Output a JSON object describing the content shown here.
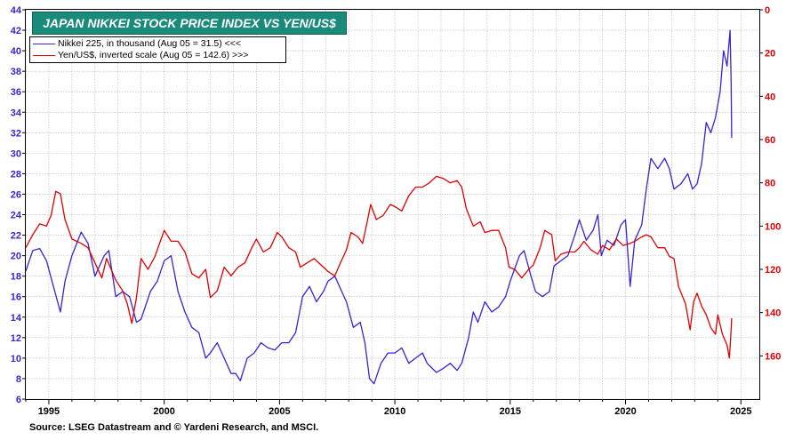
{
  "chart_data": {
    "type": "line",
    "title": "JAPAN NIKKEI STOCK PRICE INDEX VS YEN/US$",
    "source": "Source: LSEG Datastream and © Yardeni Research, and MSCI.",
    "x_ticks": [
      "1995",
      "2000",
      "2005",
      "2010",
      "2015",
      "2020",
      "2025"
    ],
    "xlim": [
      1994.0,
      2025.8
    ],
    "left_axis": {
      "ylim": [
        6,
        44
      ],
      "ticks": [
        6,
        8,
        10,
        12,
        14,
        16,
        18,
        20,
        22,
        24,
        26,
        28,
        30,
        32,
        34,
        36,
        38,
        40,
        42,
        44
      ],
      "color": "#3b22d4"
    },
    "right_axis": {
      "ylim": [
        180,
        0
      ],
      "inverted": true,
      "ticks": [
        0,
        20,
        40,
        60,
        80,
        100,
        120,
        140,
        160
      ],
      "color": "#e00000"
    },
    "grid": true,
    "legend_position": "top-left",
    "series": [
      {
        "name": "Nikkei 225, in thousand (Aug 05 = 31.5) <<<",
        "axis": "left",
        "color": "#3b22d4",
        "points": [
          [
            1994.0,
            18.5
          ],
          [
            1994.3,
            20.5
          ],
          [
            1994.6,
            20.7
          ],
          [
            1994.9,
            19.5
          ],
          [
            1995.2,
            17.0
          ],
          [
            1995.5,
            14.5
          ],
          [
            1995.7,
            17.5
          ],
          [
            1996.0,
            20.0
          ],
          [
            1996.4,
            22.3
          ],
          [
            1996.7,
            21.2
          ],
          [
            1997.0,
            18.0
          ],
          [
            1997.4,
            20.0
          ],
          [
            1997.6,
            20.5
          ],
          [
            1997.9,
            16.0
          ],
          [
            1998.2,
            16.5
          ],
          [
            1998.5,
            16.0
          ],
          [
            1998.8,
            13.5
          ],
          [
            1999.0,
            13.8
          ],
          [
            1999.4,
            16.5
          ],
          [
            1999.7,
            17.5
          ],
          [
            2000.0,
            19.5
          ],
          [
            2000.3,
            20.0
          ],
          [
            2000.6,
            16.5
          ],
          [
            2000.9,
            14.5
          ],
          [
            2001.2,
            13.0
          ],
          [
            2001.5,
            12.5
          ],
          [
            2001.8,
            10.0
          ],
          [
            2002.0,
            10.5
          ],
          [
            2002.3,
            11.5
          ],
          [
            2002.6,
            10.0
          ],
          [
            2002.9,
            8.5
          ],
          [
            2003.1,
            8.5
          ],
          [
            2003.3,
            7.8
          ],
          [
            2003.6,
            10.0
          ],
          [
            2003.9,
            10.5
          ],
          [
            2004.2,
            11.5
          ],
          [
            2004.5,
            11.0
          ],
          [
            2004.8,
            10.8
          ],
          [
            2005.1,
            11.5
          ],
          [
            2005.4,
            11.5
          ],
          [
            2005.7,
            12.5
          ],
          [
            2006.0,
            16.0
          ],
          [
            2006.3,
            17.0
          ],
          [
            2006.6,
            15.5
          ],
          [
            2006.9,
            16.5
          ],
          [
            2007.1,
            17.5
          ],
          [
            2007.4,
            18.0
          ],
          [
            2007.7,
            16.5
          ],
          [
            2007.9,
            15.5
          ],
          [
            2008.2,
            13.0
          ],
          [
            2008.5,
            13.5
          ],
          [
            2008.7,
            11.5
          ],
          [
            2008.9,
            8.0
          ],
          [
            2009.1,
            7.5
          ],
          [
            2009.4,
            9.5
          ],
          [
            2009.7,
            10.5
          ],
          [
            2010.0,
            10.5
          ],
          [
            2010.3,
            11.0
          ],
          [
            2010.6,
            9.5
          ],
          [
            2010.9,
            10.0
          ],
          [
            2011.2,
            10.5
          ],
          [
            2011.4,
            9.5
          ],
          [
            2011.8,
            8.6
          ],
          [
            2012.1,
            9.0
          ],
          [
            2012.4,
            9.5
          ],
          [
            2012.7,
            8.8
          ],
          [
            2012.9,
            9.5
          ],
          [
            2013.2,
            12.0
          ],
          [
            2013.4,
            14.5
          ],
          [
            2013.6,
            13.5
          ],
          [
            2013.9,
            15.5
          ],
          [
            2014.2,
            14.5
          ],
          [
            2014.5,
            15.0
          ],
          [
            2014.8,
            16.0
          ],
          [
            2015.0,
            17.5
          ],
          [
            2015.4,
            20.0
          ],
          [
            2015.6,
            20.5
          ],
          [
            2015.9,
            18.0
          ],
          [
            2016.1,
            16.5
          ],
          [
            2016.4,
            16.0
          ],
          [
            2016.7,
            16.5
          ],
          [
            2016.9,
            19.0
          ],
          [
            2017.2,
            19.5
          ],
          [
            2017.5,
            20.0
          ],
          [
            2017.8,
            22.0
          ],
          [
            2018.0,
            23.5
          ],
          [
            2018.3,
            21.5
          ],
          [
            2018.6,
            22.5
          ],
          [
            2018.8,
            24.0
          ],
          [
            2018.95,
            20.0
          ],
          [
            2019.2,
            21.5
          ],
          [
            2019.5,
            21.0
          ],
          [
            2019.8,
            23.0
          ],
          [
            2020.0,
            23.5
          ],
          [
            2020.2,
            17.0
          ],
          [
            2020.4,
            21.5
          ],
          [
            2020.7,
            23.0
          ],
          [
            2020.9,
            26.5
          ],
          [
            2021.1,
            29.5
          ],
          [
            2021.4,
            28.5
          ],
          [
            2021.7,
            29.5
          ],
          [
            2021.9,
            28.5
          ],
          [
            2022.1,
            26.5
          ],
          [
            2022.4,
            27.0
          ],
          [
            2022.7,
            28.0
          ],
          [
            2022.9,
            26.5
          ],
          [
            2023.1,
            27.0
          ],
          [
            2023.3,
            29.0
          ],
          [
            2023.5,
            33.0
          ],
          [
            2023.7,
            32.0
          ],
          [
            2023.9,
            33.5
          ],
          [
            2024.1,
            36.0
          ],
          [
            2024.25,
            40.0
          ],
          [
            2024.4,
            38.5
          ],
          [
            2024.53,
            42.0
          ],
          [
            2024.58,
            37.0
          ],
          [
            2024.6,
            31.5
          ]
        ]
      },
      {
        "name": "Yen/US$, inverted scale (Aug 05 = 142.6) >>>",
        "axis": "right",
        "color": "#e00000",
        "points": [
          [
            1994.0,
            110
          ],
          [
            1994.3,
            104
          ],
          [
            1994.6,
            99
          ],
          [
            1994.9,
            100
          ],
          [
            1995.1,
            95
          ],
          [
            1995.3,
            84
          ],
          [
            1995.5,
            85
          ],
          [
            1995.7,
            97
          ],
          [
            1996.0,
            106
          ],
          [
            1996.4,
            108
          ],
          [
            1996.7,
            110
          ],
          [
            1997.0,
            117
          ],
          [
            1997.3,
            124
          ],
          [
            1997.5,
            115
          ],
          [
            1997.9,
            125
          ],
          [
            1998.2,
            130
          ],
          [
            1998.4,
            136
          ],
          [
            1998.6,
            145
          ],
          [
            1998.8,
            133
          ],
          [
            1999.0,
            115
          ],
          [
            1999.3,
            120
          ],
          [
            1999.6,
            114
          ],
          [
            2000.0,
            102
          ],
          [
            2000.3,
            107
          ],
          [
            2000.6,
            107
          ],
          [
            2000.9,
            112
          ],
          [
            2001.2,
            122
          ],
          [
            2001.5,
            124
          ],
          [
            2001.8,
            120
          ],
          [
            2002.0,
            133
          ],
          [
            2002.3,
            130
          ],
          [
            2002.6,
            119
          ],
          [
            2002.9,
            123
          ],
          [
            2003.2,
            119
          ],
          [
            2003.5,
            117
          ],
          [
            2003.8,
            110
          ],
          [
            2004.0,
            106
          ],
          [
            2004.3,
            112
          ],
          [
            2004.6,
            110
          ],
          [
            2004.9,
            103
          ],
          [
            2005.1,
            105
          ],
          [
            2005.4,
            110
          ],
          [
            2005.7,
            112
          ],
          [
            2005.9,
            119
          ],
          [
            2006.2,
            117
          ],
          [
            2006.5,
            115
          ],
          [
            2006.8,
            118
          ],
          [
            2007.1,
            121
          ],
          [
            2007.4,
            123
          ],
          [
            2007.6,
            118
          ],
          [
            2007.9,
            111
          ],
          [
            2008.1,
            103
          ],
          [
            2008.4,
            105
          ],
          [
            2008.6,
            108
          ],
          [
            2008.8,
            98
          ],
          [
            2008.95,
            90
          ],
          [
            2009.2,
            97
          ],
          [
            2009.5,
            95
          ],
          [
            2009.8,
            90
          ],
          [
            2010.0,
            91
          ],
          [
            2010.3,
            93
          ],
          [
            2010.6,
            86
          ],
          [
            2010.9,
            82
          ],
          [
            2011.2,
            82
          ],
          [
            2011.5,
            80
          ],
          [
            2011.8,
            77
          ],
          [
            2012.1,
            78
          ],
          [
            2012.4,
            80
          ],
          [
            2012.7,
            79
          ],
          [
            2012.9,
            82
          ],
          [
            2013.1,
            92
          ],
          [
            2013.4,
            100
          ],
          [
            2013.7,
            98
          ],
          [
            2013.9,
            103
          ],
          [
            2014.2,
            102
          ],
          [
            2014.5,
            102
          ],
          [
            2014.8,
            110
          ],
          [
            2014.95,
            119
          ],
          [
            2015.2,
            120
          ],
          [
            2015.5,
            124
          ],
          [
            2015.8,
            120
          ],
          [
            2016.0,
            118
          ],
          [
            2016.3,
            110
          ],
          [
            2016.5,
            102
          ],
          [
            2016.8,
            104
          ],
          [
            2016.95,
            116
          ],
          [
            2017.2,
            113
          ],
          [
            2017.5,
            112
          ],
          [
            2017.8,
            112
          ],
          [
            2018.0,
            110
          ],
          [
            2018.2,
            107
          ],
          [
            2018.5,
            111
          ],
          [
            2018.8,
            113
          ],
          [
            2019.0,
            109
          ],
          [
            2019.3,
            111
          ],
          [
            2019.6,
            106
          ],
          [
            2019.9,
            109
          ],
          [
            2020.2,
            108
          ],
          [
            2020.4,
            107
          ],
          [
            2020.7,
            105
          ],
          [
            2020.9,
            104
          ],
          [
            2021.1,
            105
          ],
          [
            2021.4,
            110
          ],
          [
            2021.7,
            110
          ],
          [
            2021.9,
            114
          ],
          [
            2022.1,
            115
          ],
          [
            2022.3,
            128
          ],
          [
            2022.6,
            136
          ],
          [
            2022.8,
            148
          ],
          [
            2022.95,
            135
          ],
          [
            2023.1,
            131
          ],
          [
            2023.3,
            137
          ],
          [
            2023.5,
            141
          ],
          [
            2023.7,
            147
          ],
          [
            2023.9,
            150
          ],
          [
            2024.0,
            141
          ],
          [
            2024.2,
            150
          ],
          [
            2024.4,
            155
          ],
          [
            2024.5,
            161
          ],
          [
            2024.55,
            153
          ],
          [
            2024.6,
            142.6
          ]
        ]
      }
    ]
  }
}
